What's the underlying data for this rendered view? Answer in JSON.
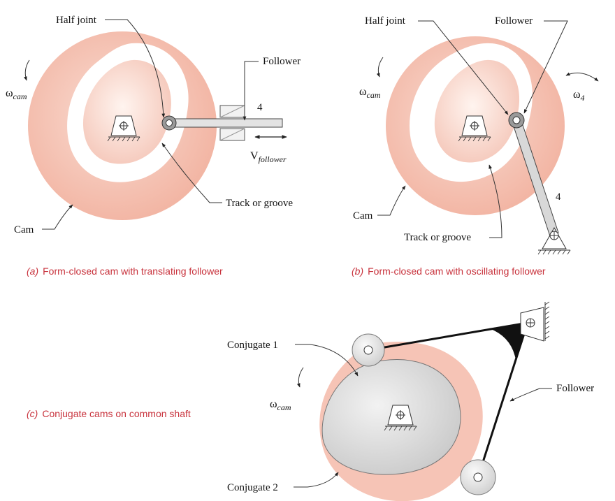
{
  "colors": {
    "cam_outer": "#f2b8a8",
    "cam_groove": "#ffffff",
    "cam_inner": "#f7cfc2",
    "conjugate_cam": "#d9d9d9",
    "roller": "#e6e6e6",
    "caption": "#c8323c",
    "follower_link": "#111111"
  },
  "panel_a": {
    "label_half_joint": "Half joint",
    "label_follower": "Follower",
    "label_track": "Track or groove",
    "label_cam": "Cam",
    "label_link_number": "4",
    "omega_symbol": "ω",
    "omega_subscript": "cam",
    "velocity_symbol": "V",
    "velocity_subscript": "follower",
    "caption_tag": "(a)",
    "caption_text": "Form-closed cam with translating follower"
  },
  "panel_b": {
    "label_half_joint": "Half joint",
    "label_follower": "Follower",
    "label_track": "Track or groove",
    "label_cam": "Cam",
    "label_link_number": "4",
    "omega_symbol": "ω",
    "omega_subscript": "cam",
    "omega4_symbol": "ω",
    "omega4_subscript": "4",
    "caption_tag": "(b)",
    "caption_text": "Form-closed cam with oscillating follower"
  },
  "panel_c": {
    "label_conjugate_1": "Conjugate 1",
    "label_conjugate_2": "Conjugate 2",
    "label_follower": "Follower",
    "omega_symbol": "ω",
    "omega_subscript": "cam",
    "caption_tag": "(c)",
    "caption_text": "Conjugate cams on common shaft"
  }
}
